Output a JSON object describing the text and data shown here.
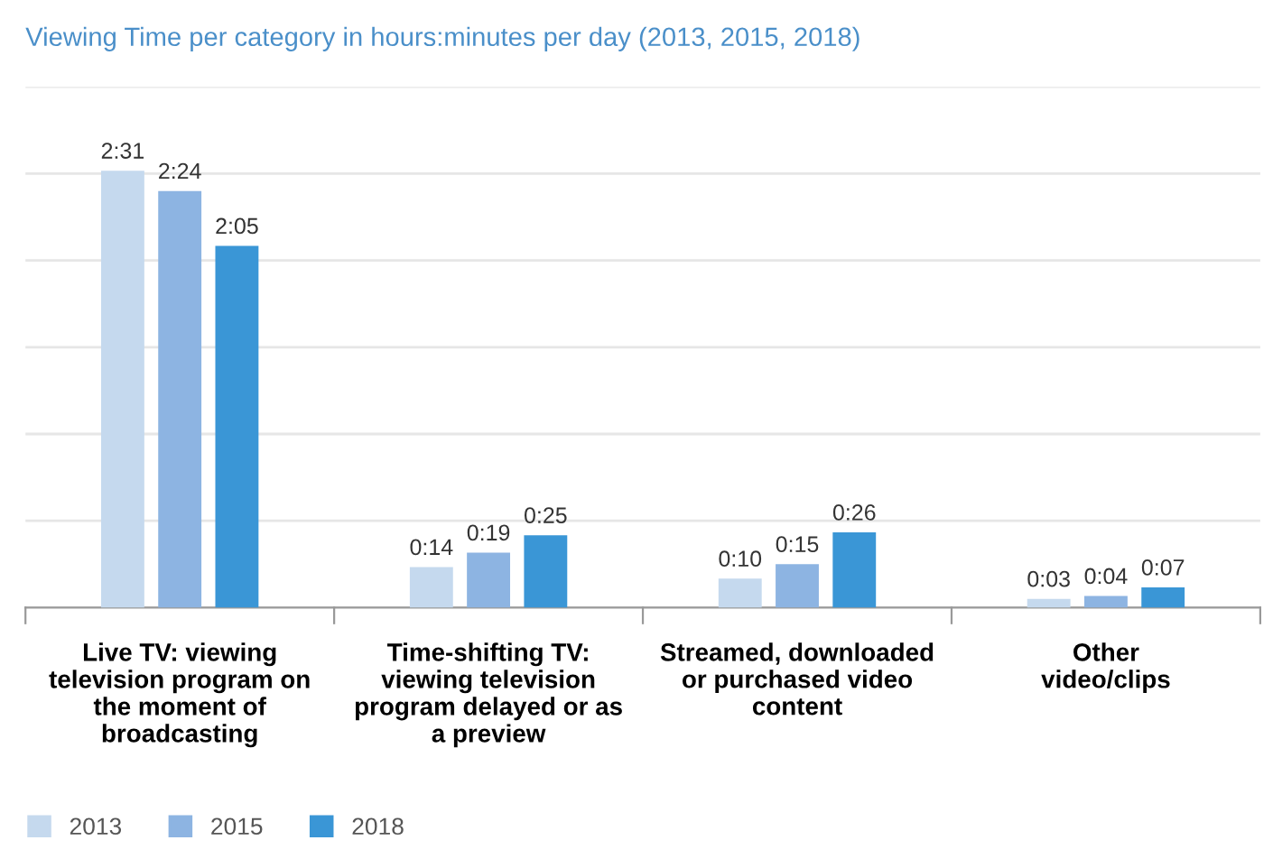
{
  "chart_data": {
    "type": "bar",
    "title": "Viewing Time per category in hours:minutes per day (2013, 2015, 2018)",
    "categories": [
      "Live TV: viewing\ntelevision program on\nthe moment of\nbroadcasting",
      "Time-shifting TV:\nviewing television\nprogram delayed or as\na preview",
      "Streamed, downloaded\nor purchased video\ncontent",
      "Other\nvideo/clips"
    ],
    "series": [
      {
        "name": "2013",
        "color": "#c5d9ee",
        "values": [
          151,
          14,
          10,
          3
        ],
        "value_labels": [
          "2:31",
          "0:14",
          "0:10",
          "0:03"
        ]
      },
      {
        "name": "2015",
        "color": "#8db4e2",
        "values": [
          144,
          19,
          15,
          4
        ],
        "value_labels": [
          "2:24",
          "0:19",
          "0:15",
          "0:04"
        ]
      },
      {
        "name": "2018",
        "color": "#3a96d6",
        "values": [
          125,
          25,
          26,
          7
        ],
        "value_labels": [
          "2:05",
          "0:25",
          "0:26",
          "0:07"
        ]
      }
    ],
    "ylim": [
      0,
      180
    ],
    "yticks": [
      {
        "value": 0,
        "label": null
      },
      {
        "value": 30,
        "label": null
      },
      {
        "value": 60,
        "label": null
      },
      {
        "value": 90,
        "label": null
      },
      {
        "value": 120,
        "label": null
      },
      {
        "value": 150,
        "label": null
      },
      {
        "value": 180,
        "label": null
      }
    ],
    "grid": "y",
    "legend": "bottom left",
    "tick_labels": "x"
  }
}
